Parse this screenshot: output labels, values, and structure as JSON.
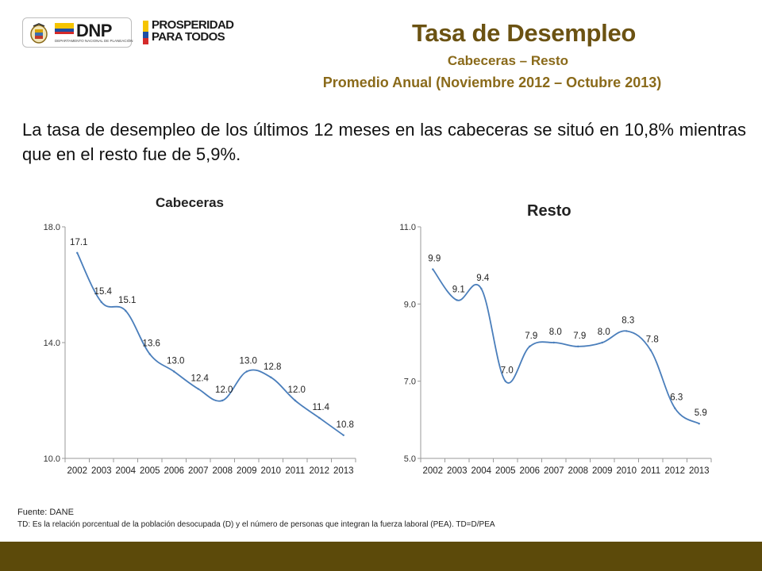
{
  "header": {
    "dnp_logo": "DNP",
    "dnp_subtitle": "DEPARTAMENTO NACIONAL DE PLANEACIÓN",
    "prosperidad_logo_line1": "PROSPERIDAD",
    "prosperidad_logo_line2": "PARA TODOS",
    "title": "Tasa de Desempleo",
    "subtitle": "Cabeceras – Resto",
    "subtitle2": "Promedio Anual (Noviembre 2012 – Octubre 2013)"
  },
  "summary": "La tasa de desempleo de los últimos 12 meses en las cabeceras se situó en 10,8% mientras que en el resto fue de 5,9%.",
  "colors": {
    "title": "#6b5212",
    "subtitle": "#8a6a1a",
    "line": "#4a7ebb",
    "footer": "#5c4a0a"
  },
  "chart_data": [
    {
      "type": "line",
      "title": "Cabeceras",
      "categories": [
        "2002",
        "2003",
        "2004",
        "2005",
        "2006",
        "2007",
        "2008",
        "2009",
        "2010",
        "2011",
        "2012",
        "2013"
      ],
      "values": [
        17.1,
        15.4,
        15.1,
        13.6,
        13.0,
        12.4,
        12.0,
        13.0,
        12.8,
        12.0,
        11.4,
        10.8
      ],
      "data_labels": [
        "17.1",
        "15.4",
        "15.1",
        "13.6",
        "13.0",
        "12.4",
        "12.0",
        "13.0",
        "12.8",
        "12.0",
        "11.4",
        "10.8"
      ],
      "ylim": [
        10.0,
        18.0
      ],
      "yticks": [
        10.0,
        14.0,
        18.0
      ],
      "ytick_labels": [
        "10.0",
        "14.0",
        "18.0"
      ],
      "smooth": true,
      "grid": false
    },
    {
      "type": "line",
      "title": "Resto",
      "categories": [
        "2002",
        "2003",
        "2004",
        "2005",
        "2006",
        "2007",
        "2008",
        "2009",
        "2010",
        "2011",
        "2012",
        "2013"
      ],
      "values": [
        9.9,
        9.1,
        9.4,
        7.0,
        7.9,
        8.0,
        7.9,
        8.0,
        8.3,
        7.8,
        6.3,
        5.9
      ],
      "data_labels": [
        "9.9",
        "9.1",
        "9.4",
        "7.0",
        "7.9",
        "8.0",
        "7.9",
        "8.0",
        "8.3",
        "7.8",
        "6.3",
        "5.9"
      ],
      "ylim": [
        5.0,
        11.0
      ],
      "yticks": [
        5.0,
        7.0,
        9.0,
        11.0
      ],
      "ytick_labels": [
        "5.0",
        "7.0",
        "9.0",
        "11.0"
      ],
      "smooth": true,
      "grid": false
    }
  ],
  "footnote": {
    "source": "Fuente: DANE",
    "definition": "TD:  Es la relación porcentual de la población desocupada (D) y el número de personas que integran la fuerza laboral (PEA). TD=D/PEA"
  }
}
